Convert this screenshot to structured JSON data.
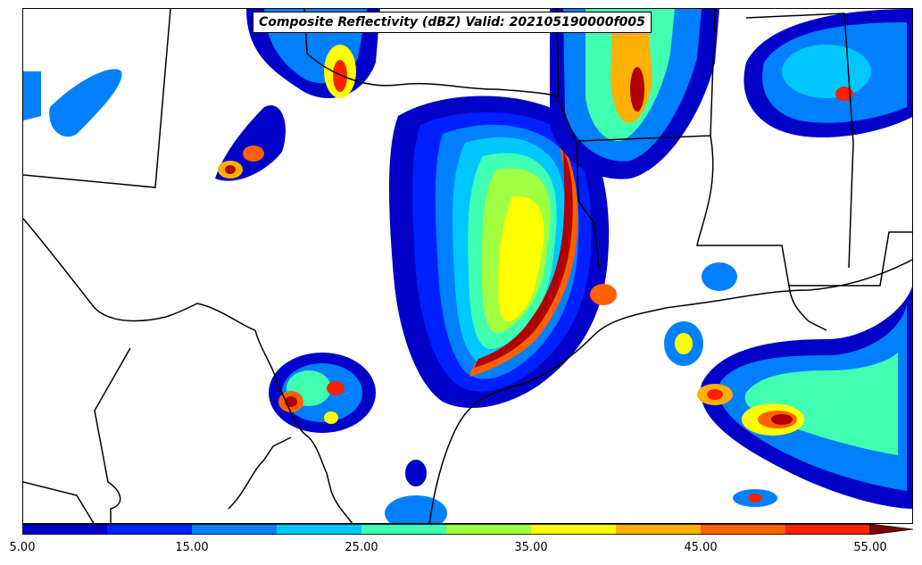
{
  "title": "Composite Reflectivity (dBZ) Valid: 202105190000f005",
  "colorbar": {
    "tick_labels": [
      "5.00",
      "15.00",
      "25.00",
      "35.00",
      "45.00",
      "55.00"
    ],
    "colors": [
      "#0000c8",
      "#0020ff",
      "#0080ff",
      "#00c8ff",
      "#40ffb0",
      "#a0ff40",
      "#ffff00",
      "#ffb000",
      "#ff6000",
      "#ff2000",
      "#b00000",
      "#800000"
    ],
    "extend": "max"
  }
}
